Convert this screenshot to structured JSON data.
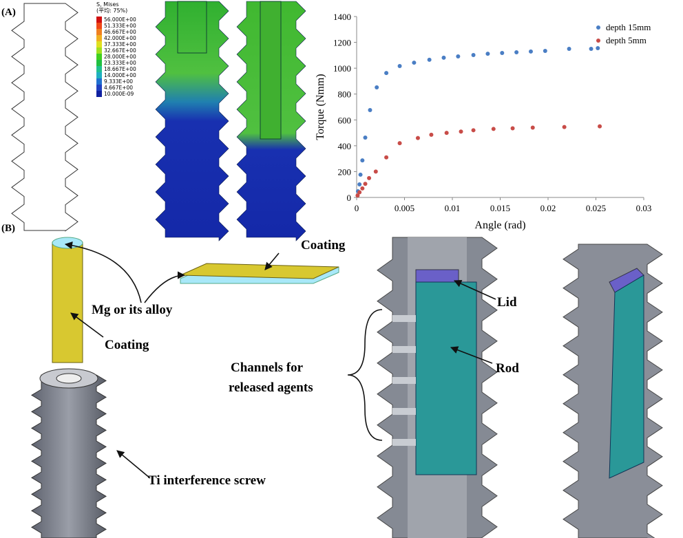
{
  "panel_labels": [
    "(A)",
    "(B)"
  ],
  "contour_legend": {
    "title": "S, Mises",
    "subtitle": "(平均: 75%)",
    "levels": [
      "56.000E+00",
      "51.333E+00",
      "46.667E+00",
      "42.000E+00",
      "37.333E+00",
      "32.667E+00",
      "28.000E+00",
      "23.333E+00",
      "18.667E+00",
      "14.000E+00",
      "9.333E+00",
      "4.667E+00",
      "10.000E-09"
    ],
    "colors": [
      "#d01010",
      "#f04818",
      "#f08020",
      "#f0b020",
      "#e0e020",
      "#a0e020",
      "#40d020",
      "#20c040",
      "#20c090",
      "#20b0c0",
      "#2070d0",
      "#2040c0",
      "#1020a0"
    ]
  },
  "annotations": {
    "coating_plate": "Coating",
    "mg_alloy": "Mg or its alloy",
    "coating_rod": "Coating",
    "ti_screw": "Ti interference screw",
    "lid": "Lid",
    "rod": "Rod",
    "channels": [
      "Channels for",
      "released agents"
    ]
  },
  "chart_data": {
    "type": "scatter",
    "xlabel": "Angle (rad)",
    "ylabel": "Torque (Nmm)",
    "xlim": [
      0,
      0.03
    ],
    "xticks": [
      0,
      0.005,
      0.01,
      0.015,
      0.02,
      0.025,
      0.03
    ],
    "ylim": [
      0,
      1400
    ],
    "yticks": [
      0,
      200,
      400,
      600,
      800,
      1000,
      1200,
      1400
    ],
    "legend": "upper right",
    "series": [
      {
        "name": "depth 15mm",
        "color": "#4a7ec4",
        "x": [
          0.00014,
          0.0003,
          0.0004,
          0.0006,
          0.0009,
          0.0014,
          0.0021,
          0.0031,
          0.0045,
          0.006,
          0.0076,
          0.0091,
          0.0106,
          0.0122,
          0.0137,
          0.0152,
          0.0167,
          0.0182,
          0.0197,
          0.0222,
          0.0245,
          0.0252
        ],
        "values": [
          48,
          101,
          176,
          287,
          463,
          676,
          852,
          963,
          1017,
          1043,
          1065,
          1081,
          1091,
          1102,
          1112,
          1118,
          1123,
          1129,
          1134,
          1150,
          1150,
          1155
        ]
      },
      {
        "name": "depth 5mm",
        "color": "#c84c48",
        "x": [
          0.0001,
          0.0003,
          0.0006,
          0.0009,
          0.0013,
          0.002,
          0.0031,
          0.0045,
          0.0064,
          0.0078,
          0.0094,
          0.0109,
          0.0122,
          0.0143,
          0.0163,
          0.0184,
          0.0217,
          0.0254
        ],
        "values": [
          15,
          40,
          70,
          105,
          150,
          200,
          310,
          420,
          460,
          485,
          500,
          510,
          520,
          530,
          535,
          540,
          545,
          550
        ]
      }
    ]
  }
}
